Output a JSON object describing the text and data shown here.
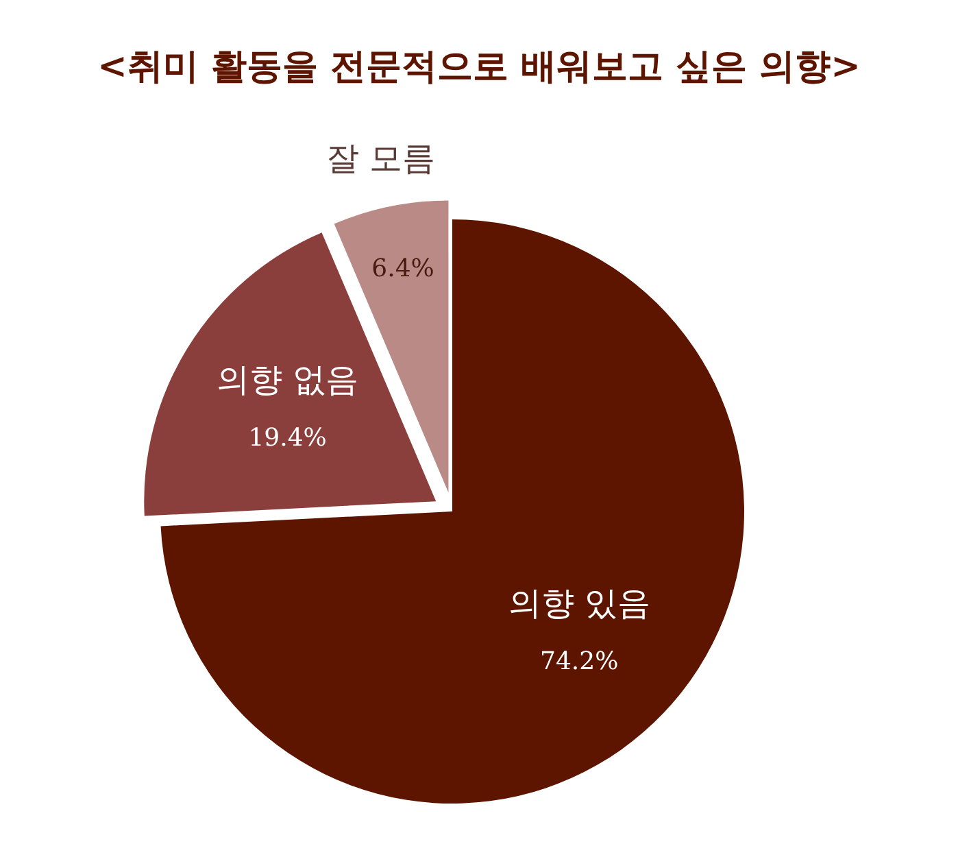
{
  "chart_data": {
    "type": "pie",
    "title": "<취미 활동을 전문적으로 배워보고 싶은 의향>",
    "categories": [
      "의향 있음",
      "의향 없음",
      "잘 모름"
    ],
    "values": [
      74.2,
      19.4,
      6.4
    ],
    "colors": [
      "#5e1500",
      "#8b3f3c",
      "#b98a86"
    ],
    "value_labels": [
      "74.2%",
      "19.4%",
      "6.4%"
    ]
  }
}
